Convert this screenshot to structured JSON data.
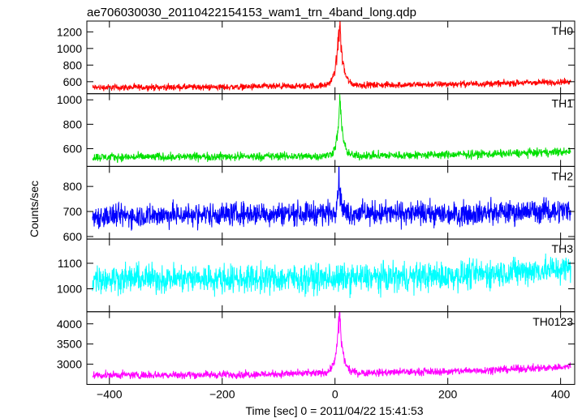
{
  "chart_data": {
    "type": "line",
    "title": "ae706030030_20110422154153_wam1_trn_4band_long.qdp",
    "xlabel": "Time [sec] 0 = 2011/04/22 15:41:53",
    "ylabel": "Counts/sec",
    "xlim": [
      -440,
      425
    ],
    "x_ticks": [
      -400,
      -200,
      0,
      200,
      400
    ],
    "x_tick_labels": [
      "−400",
      "−200",
      "0",
      "200",
      "400"
    ],
    "x_range_data": [
      -430,
      418
    ],
    "grid": false,
    "legend": "none",
    "panels": [
      {
        "name": "TH0",
        "color": "#ff0000",
        "ylim": [
          455,
          1330
        ],
        "y_ticks": [
          600,
          800,
          1000,
          1200
        ],
        "y_tick_labels": [
          "600",
          "800",
          "1000",
          "1200"
        ],
        "baseline_points": [
          [
            -430,
            530
          ],
          [
            -200,
            535
          ],
          [
            0,
            550
          ],
          [
            20,
            560
          ],
          [
            100,
            560
          ],
          [
            200,
            570
          ],
          [
            300,
            580
          ],
          [
            418,
            600
          ]
        ],
        "noise_amplitude": 45,
        "burst": {
          "peak_time": 8,
          "peak_value": 1330,
          "rise": 6,
          "decay": 6
        }
      },
      {
        "name": "TH1",
        "color": "#00e000",
        "ylim": [
          455,
          1050
        ],
        "y_ticks": [
          600,
          800,
          1000
        ],
        "y_tick_labels": [
          "600",
          "800",
          "1000"
        ],
        "baseline_points": [
          [
            -430,
            530
          ],
          [
            -200,
            535
          ],
          [
            0,
            540
          ],
          [
            100,
            545
          ],
          [
            200,
            550
          ],
          [
            300,
            560
          ],
          [
            418,
            575
          ]
        ],
        "noise_amplitude": 40,
        "burst": {
          "peak_time": 9,
          "peak_value": 1000,
          "rise": 5,
          "decay": 5
        }
      },
      {
        "name": "TH2",
        "color": "#0000ff",
        "ylim": [
          590,
          880
        ],
        "y_ticks": [
          600,
          700,
          800
        ],
        "y_tick_labels": [
          "600",
          "700",
          "800"
        ],
        "baseline_points": [
          [
            -430,
            680
          ],
          [
            -200,
            690
          ],
          [
            0,
            695
          ],
          [
            200,
            690
          ],
          [
            418,
            705
          ]
        ],
        "noise_amplitude": 55,
        "burst": {
          "peak_time": 7,
          "peak_value": 860,
          "rise": 3,
          "decay": 3
        }
      },
      {
        "name": "TH3",
        "color": "#00ffff",
        "ylim": [
          910,
          1195
        ],
        "y_ticks": [
          1000,
          1100
        ],
        "y_tick_labels": [
          "1000",
          "1100"
        ],
        "baseline_points": [
          [
            -430,
            1040
          ],
          [
            -200,
            1040
          ],
          [
            0,
            1040
          ],
          [
            200,
            1050
          ],
          [
            418,
            1080
          ]
        ],
        "noise_amplitude": 65,
        "burst": null
      },
      {
        "name": "TH0123",
        "color": "#ff00ff",
        "ylim": [
          2500,
          4300
        ],
        "y_ticks": [
          3000,
          3500,
          4000
        ],
        "y_tick_labels": [
          "3000",
          "3500",
          "4000"
        ],
        "baseline_points": [
          [
            -430,
            2730
          ],
          [
            -200,
            2740
          ],
          [
            0,
            2780
          ],
          [
            100,
            2800
          ],
          [
            200,
            2820
          ],
          [
            300,
            2870
          ],
          [
            418,
            2940
          ]
        ],
        "noise_amplitude": 110,
        "burst": {
          "peak_time": 8,
          "peak_value": 4280,
          "rise": 6,
          "decay": 6
        }
      }
    ]
  }
}
